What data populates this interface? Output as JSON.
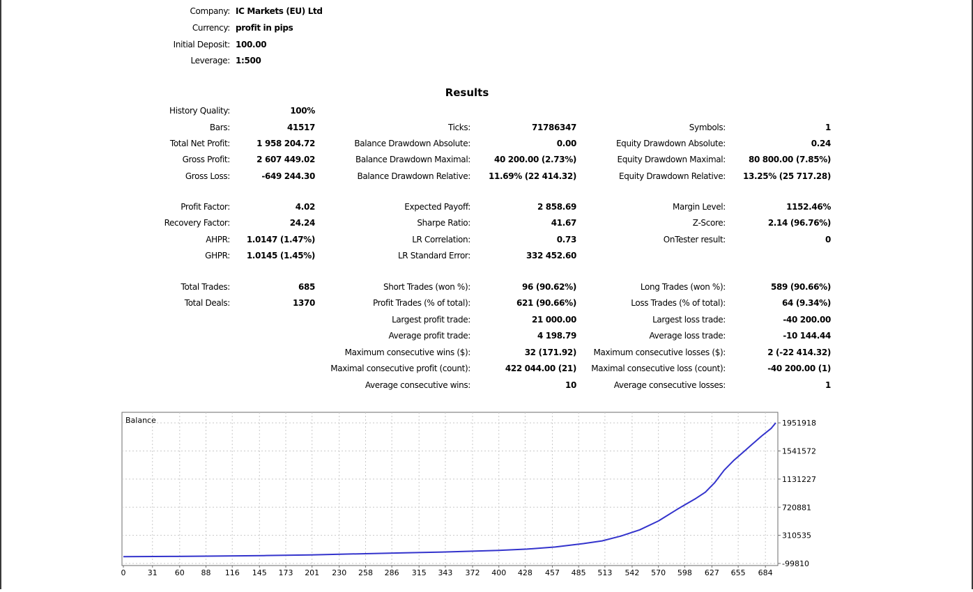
{
  "header": {
    "company_label": "Company:",
    "company_value": "IC Markets (EU) Ltd",
    "currency_label": "Currency:",
    "currency_value": "profit in pips",
    "deposit_label": "Initial Deposit:",
    "deposit_value": "100.00",
    "leverage_label": "Leverage:",
    "leverage_value": "1:500"
  },
  "results": {
    "title": "Results",
    "history_quality": {
      "label": "History Quality:",
      "value": "100%"
    },
    "bars": {
      "label": "Bars:",
      "value": "41517"
    },
    "ticks": {
      "label": "Ticks:",
      "value": "71786347"
    },
    "symbols": {
      "label": "Symbols:",
      "value": "1"
    },
    "total_net_profit": {
      "label": "Total Net Profit:",
      "value": "1 958 204.72"
    },
    "balance_dd_abs": {
      "label": "Balance Drawdown Absolute:",
      "value": "0.00"
    },
    "equity_dd_abs": {
      "label": "Equity Drawdown Absolute:",
      "value": "0.24"
    },
    "gross_profit": {
      "label": "Gross Profit:",
      "value": "2 607 449.02"
    },
    "balance_dd_max": {
      "label": "Balance Drawdown Maximal:",
      "value": "40 200.00 (2.73%)"
    },
    "equity_dd_max": {
      "label": "Equity Drawdown Maximal:",
      "value": "80 800.00 (7.85%)"
    },
    "gross_loss": {
      "label": "Gross Loss:",
      "value": "-649 244.30"
    },
    "balance_dd_rel": {
      "label": "Balance Drawdown Relative:",
      "value": "11.69% (22 414.32)"
    },
    "equity_dd_rel": {
      "label": "Equity Drawdown Relative:",
      "value": "13.25% (25 717.28)"
    },
    "profit_factor": {
      "label": "Profit Factor:",
      "value": "4.02"
    },
    "expected_payoff": {
      "label": "Expected Payoff:",
      "value": "2 858.69"
    },
    "margin_level": {
      "label": "Margin Level:",
      "value": "1152.46%"
    },
    "recovery_factor": {
      "label": "Recovery Factor:",
      "value": "24.24"
    },
    "sharpe_ratio": {
      "label": "Sharpe Ratio:",
      "value": "41.67"
    },
    "z_score": {
      "label": "Z-Score:",
      "value": "2.14 (96.76%)"
    },
    "ahpr": {
      "label": "AHPR:",
      "value": "1.0147 (1.47%)"
    },
    "lr_correlation": {
      "label": "LR Correlation:",
      "value": "0.73"
    },
    "ontester": {
      "label": "OnTester result:",
      "value": "0"
    },
    "ghpr": {
      "label": "GHPR:",
      "value": "1.0145 (1.45%)"
    },
    "lr_std_error": {
      "label": "LR Standard Error:",
      "value": "332 452.60"
    },
    "total_trades": {
      "label": "Total Trades:",
      "value": "685"
    },
    "short_trades": {
      "label": "Short Trades (won %):",
      "value": "96 (90.62%)"
    },
    "long_trades": {
      "label": "Long Trades (won %):",
      "value": "589 (90.66%)"
    },
    "total_deals": {
      "label": "Total Deals:",
      "value": "1370"
    },
    "profit_trades": {
      "label": "Profit Trades (% of total):",
      "value": "621 (90.66%)"
    },
    "loss_trades": {
      "label": "Loss Trades (% of total):",
      "value": "64 (9.34%)"
    },
    "largest_profit": {
      "label": "Largest profit trade:",
      "value": "21 000.00"
    },
    "largest_loss": {
      "label": "Largest loss trade:",
      "value": "-40 200.00"
    },
    "average_profit": {
      "label": "Average profit trade:",
      "value": "4 198.79"
    },
    "average_loss": {
      "label": "Average loss trade:",
      "value": "-10 144.44"
    },
    "max_consec_wins": {
      "label": "Maximum consecutive wins ($):",
      "value": "32 (171.92)"
    },
    "max_consec_losses": {
      "label": "Maximum consecutive losses ($):",
      "value": "2 (-22 414.32)"
    },
    "maximal_consec_profit": {
      "label": "Maximal consecutive profit (count):",
      "value": "422 044.00 (21)"
    },
    "maximal_consec_loss": {
      "label": "Maximal consecutive loss (count):",
      "value": "-40 200.00 (1)"
    },
    "avg_consec_wins": {
      "label": "Average consecutive wins:",
      "value": "10"
    },
    "avg_consec_losses": {
      "label": "Average consecutive losses:",
      "value": "1"
    }
  },
  "chart_data": {
    "type": "line",
    "title": "Balance",
    "series": [
      {
        "color": "#3333cc",
        "x": [
          0,
          50,
          100,
          150,
          200,
          250,
          300,
          350,
          400,
          430,
          460,
          490,
          510,
          530,
          550,
          570,
          590,
          600,
          610,
          620,
          630,
          640,
          650,
          660,
          670,
          680,
          690,
          695
        ],
        "y": [
          100,
          3000,
          8000,
          15000,
          25000,
          40000,
          55000,
          70000,
          90000,
          110000,
          140000,
          190000,
          230000,
          300000,
          390000,
          520000,
          690000,
          770000,
          850000,
          940000,
          1080000,
          1260000,
          1400000,
          1520000,
          1640000,
          1760000,
          1870000,
          1951918
        ]
      }
    ],
    "x_ticks": [
      "0",
      "31",
      "60",
      "88",
      "116",
      "145",
      "173",
      "201",
      "230",
      "258",
      "286",
      "315",
      "343",
      "372",
      "400",
      "428",
      "457",
      "485",
      "513",
      "542",
      "570",
      "598",
      "627",
      "655",
      "684"
    ],
    "y_ticks": [
      "1951918",
      "1541572",
      "1131227",
      "720881",
      "310535",
      "-99810"
    ],
    "xlim": [
      0,
      695
    ],
    "ylim": [
      -99810,
      2055000
    ],
    "grid": true,
    "line_color": "#3333cc"
  }
}
